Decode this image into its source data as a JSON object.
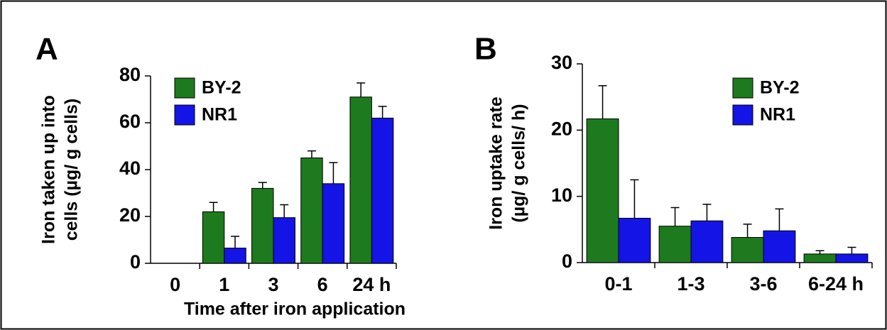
{
  "chart_data": [
    {
      "type": "bar",
      "panel_label": "A",
      "y_label": [
        "Iron taken up into",
        "cells (µg/ g cells)"
      ],
      "x_label": "Time after iron application",
      "categories": [
        "0",
        "1",
        "3",
        "6",
        "24 h"
      ],
      "series": [
        {
          "name": "BY-2",
          "color": "#1e7a1e",
          "values": [
            0,
            22,
            32,
            45,
            71
          ],
          "errors": [
            0,
            4,
            2.5,
            3,
            6
          ]
        },
        {
          "name": "NR1",
          "color": "#1414e6",
          "values": [
            0,
            6.5,
            19.5,
            34,
            62
          ],
          "errors": [
            0,
            5,
            5.5,
            9,
            5
          ]
        }
      ],
      "ylim": [
        0,
        80
      ],
      "yticks": [
        0,
        20,
        40,
        60,
        80
      ]
    },
    {
      "type": "bar",
      "panel_label": "B",
      "y_label": [
        "Iron uptake rate",
        "(µg/ g cells/ h)"
      ],
      "categories": [
        "0-1",
        "1-3",
        "3-6",
        "6-24 h"
      ],
      "series": [
        {
          "name": "BY-2",
          "color": "#1e7a1e",
          "values": [
            21.7,
            5.5,
            3.8,
            1.3
          ],
          "errors": [
            5,
            2.8,
            2,
            0.5
          ]
        },
        {
          "name": "NR1",
          "color": "#1414e6",
          "values": [
            6.7,
            6.3,
            4.8,
            1.3
          ],
          "errors": [
            5.8,
            2.5,
            3.3,
            1
          ]
        }
      ],
      "ylim": [
        0,
        30
      ],
      "yticks": [
        0,
        10,
        20,
        30
      ]
    }
  ]
}
